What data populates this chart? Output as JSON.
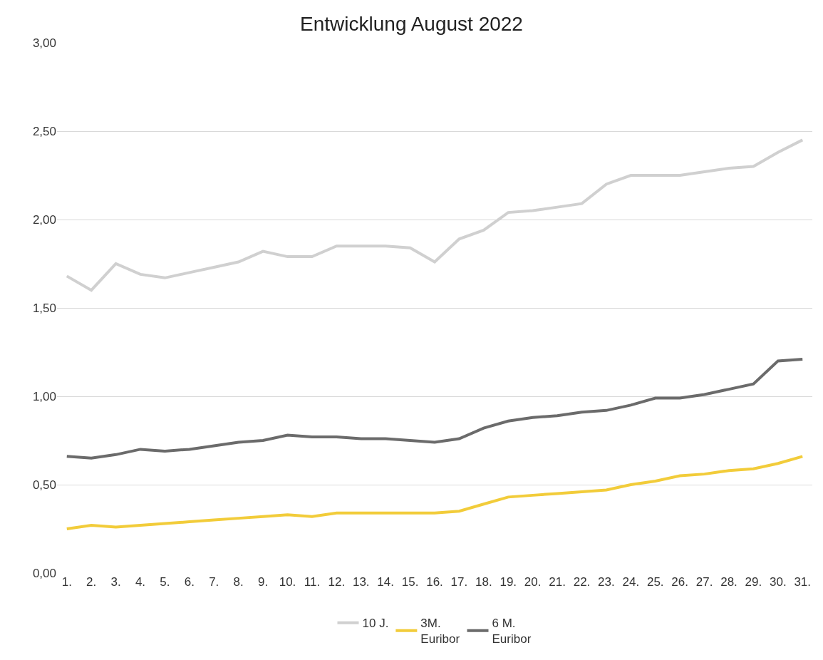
{
  "chart_data": {
    "type": "line",
    "title": "Entwicklung August 2022",
    "categories": [
      "1.",
      "2.",
      "3.",
      "4.",
      "5.",
      "6.",
      "7.",
      "8.",
      "9.",
      "10.",
      "11.",
      "12.",
      "13.",
      "14.",
      "15.",
      "16.",
      "17.",
      "18.",
      "19.",
      "20.",
      "21.",
      "22.",
      "23.",
      "24.",
      "25.",
      "26.",
      "27.",
      "28.",
      "29.",
      "30.",
      "31."
    ],
    "series": [
      {
        "name": "10 J.",
        "color": "#d0d0d0",
        "values": [
          1.68,
          1.6,
          1.75,
          1.69,
          1.67,
          1.7,
          1.73,
          1.76,
          1.82,
          1.79,
          1.79,
          1.85,
          1.85,
          1.85,
          1.84,
          1.76,
          1.89,
          1.94,
          2.04,
          2.05,
          2.07,
          2.09,
          2.2,
          2.25,
          2.25,
          2.25,
          2.27,
          2.29,
          2.3,
          2.38,
          2.45
        ]
      },
      {
        "name": "3M.\nEuribor",
        "color": "#f2cc3a",
        "values": [
          0.25,
          0.27,
          0.26,
          0.27,
          0.28,
          0.29,
          0.3,
          0.31,
          0.32,
          0.33,
          0.32,
          0.34,
          0.34,
          0.34,
          0.34,
          0.34,
          0.35,
          0.39,
          0.43,
          0.44,
          0.45,
          0.46,
          0.47,
          0.5,
          0.52,
          0.55,
          0.56,
          0.58,
          0.59,
          0.62,
          0.66
        ]
      },
      {
        "name": "6 M.\nEuribor",
        "color": "#6b6b6b",
        "values": [
          0.66,
          0.65,
          0.67,
          0.7,
          0.69,
          0.7,
          0.72,
          0.74,
          0.75,
          0.78,
          0.77,
          0.77,
          0.76,
          0.76,
          0.75,
          0.74,
          0.76,
          0.82,
          0.86,
          0.88,
          0.89,
          0.91,
          0.92,
          0.95,
          0.99,
          0.99,
          1.01,
          1.04,
          1.07,
          1.2,
          1.21
        ]
      }
    ],
    "ylim": [
      0,
      3
    ],
    "yticks": [
      {
        "value": 0,
        "label": "0,00"
      },
      {
        "value": 0.5,
        "label": "0,50"
      },
      {
        "value": 1,
        "label": "1,00"
      },
      {
        "value": 1.5,
        "label": "1,50"
      },
      {
        "value": 2,
        "label": "2,00"
      },
      {
        "value": 2.5,
        "label": "2,50"
      },
      {
        "value": 3,
        "label": "3,00"
      }
    ],
    "grid": "y",
    "legend": "bottom",
    "marker": "none",
    "line_style": "solid"
  }
}
